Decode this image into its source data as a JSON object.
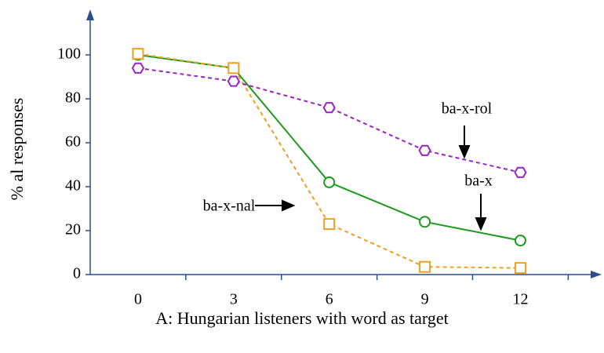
{
  "chart_data": {
    "type": "line",
    "xlabel": "A: Hungarian listeners with word as target",
    "ylabel": "% al responses",
    "x": [
      0,
      3,
      6,
      9,
      12
    ],
    "series": [
      {
        "name": "ba-x",
        "color": "#1a9a1a",
        "dash": false,
        "marker": "circle",
        "values": [
          100,
          94,
          42,
          24,
          15.5
        ]
      },
      {
        "name": "ba-x-nal",
        "color": "#f0a020",
        "dash": true,
        "marker": "square",
        "values": [
          100.5,
          94,
          23,
          3.5,
          3
        ]
      },
      {
        "name": "ba-x-rol",
        "color": "#9a22c8",
        "dash": true,
        "marker": "hexagon",
        "values": [
          94,
          88,
          76,
          56.5,
          46.5
        ]
      }
    ],
    "xlim": [
      -1.5,
      14.5
    ],
    "xticks": [
      0,
      3,
      6,
      9,
      12
    ],
    "xminorticks": [
      1.5,
      4.5,
      7.5,
      10.5,
      13.5
    ],
    "ylim": [
      0,
      120
    ],
    "yticks": [
      0,
      20,
      40,
      60,
      80,
      100
    ],
    "axis_color": "#2b4f8a"
  }
}
